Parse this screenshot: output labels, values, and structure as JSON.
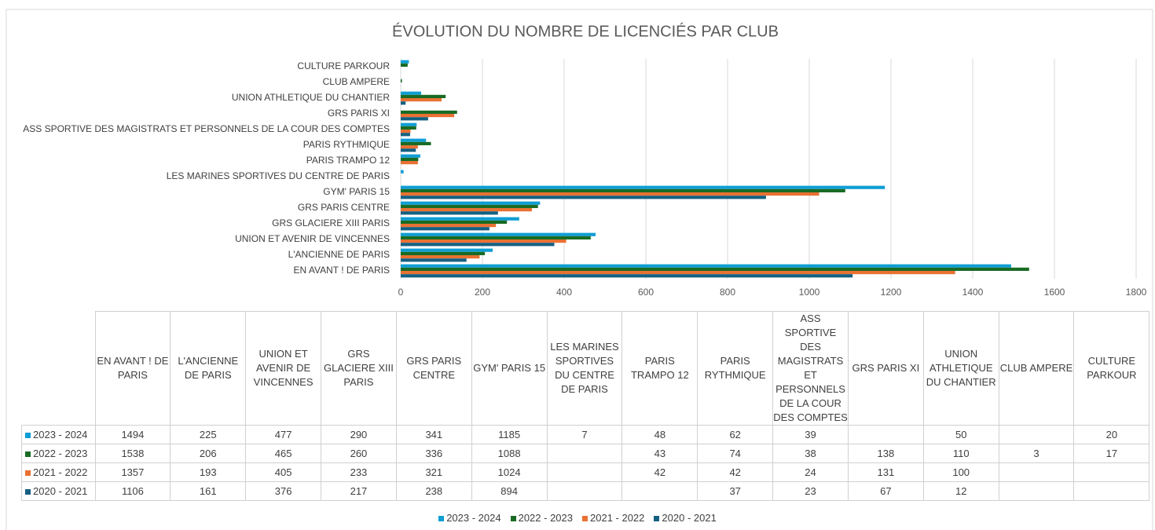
{
  "chart_data": {
    "type": "bar",
    "orientation": "horizontal",
    "title": "ÉVOLUTION DU NOMBRE DE LICENCIÉS PAR CLUB",
    "categories": [
      "EN AVANT ! DE PARIS",
      "L'ANCIENNE DE PARIS",
      "UNION ET AVENIR DE VINCENNES",
      "GRS GLACIERE XIII PARIS",
      "GRS PARIS CENTRE",
      "GYM' PARIS 15",
      "LES MARINES SPORTIVES DU CENTRE DE PARIS",
      "PARIS TRAMPO 12",
      "PARIS RYTHMIQUE",
      "ASS SPORTIVE DES MAGISTRATS ET PERSONNELS DE LA COUR DES COMPTES",
      "GRS PARIS XI",
      "UNION ATHLETIQUE DU CHANTIER",
      "CLUB AMPERE",
      "CULTURE PARKOUR"
    ],
    "series": [
      {
        "name": "2023 - 2024",
        "color": "#0f9ed5",
        "values": [
          1494,
          225,
          477,
          290,
          341,
          1185,
          7,
          48,
          62,
          39,
          null,
          50,
          null,
          20
        ]
      },
      {
        "name": "2022 - 2023",
        "color": "#196b24",
        "values": [
          1538,
          206,
          465,
          260,
          336,
          1088,
          null,
          43,
          74,
          38,
          138,
          110,
          3,
          17
        ]
      },
      {
        "name": "2021 - 2022",
        "color": "#e97132",
        "values": [
          1357,
          193,
          405,
          233,
          321,
          1024,
          null,
          42,
          42,
          24,
          131,
          100,
          null,
          null
        ]
      },
      {
        "name": "2020 - 2021",
        "color": "#156082",
        "values": [
          1106,
          161,
          376,
          217,
          238,
          894,
          null,
          null,
          37,
          23,
          67,
          12,
          null,
          null
        ]
      }
    ],
    "xlim": [
      0,
      1800
    ],
    "xticks": [
      0,
      200,
      400,
      600,
      800,
      1000,
      1200,
      1400,
      1600,
      1800
    ],
    "grid": true,
    "legend": "bottom",
    "data_table": true
  }
}
